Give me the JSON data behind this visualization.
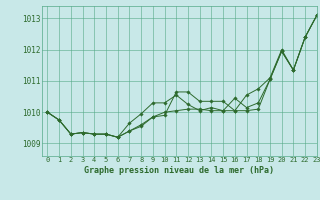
{
  "title": "Graphe pression niveau de la mer (hPa)",
  "bg_color": "#c8e8e8",
  "grid_color": "#55aa88",
  "line_color": "#2d6a2d",
  "xlim": [
    -0.5,
    23
  ],
  "ylim": [
    1008.6,
    1013.4
  ],
  "yticks": [
    1009,
    1010,
    1011,
    1012,
    1013
  ],
  "xticks": [
    0,
    1,
    2,
    3,
    4,
    5,
    6,
    7,
    8,
    9,
    10,
    11,
    12,
    13,
    14,
    15,
    16,
    17,
    18,
    19,
    20,
    21,
    22,
    23
  ],
  "line1": [
    1010.0,
    1009.75,
    1009.3,
    1009.35,
    1009.3,
    1009.3,
    1009.2,
    1009.4,
    1009.55,
    1009.85,
    1009.9,
    1010.65,
    1010.65,
    1010.35,
    1010.35,
    1010.35,
    1010.05,
    1010.55,
    1010.75,
    1011.1,
    1012.0,
    1011.35,
    1012.4,
    1013.1
  ],
  "line2": [
    1010.0,
    1009.75,
    1009.3,
    1009.35,
    1009.3,
    1009.3,
    1009.2,
    1009.65,
    1009.95,
    1010.3,
    1010.3,
    1010.55,
    1010.25,
    1010.05,
    1010.15,
    1010.05,
    1010.45,
    1010.15,
    1010.3,
    1011.05,
    1011.95,
    1011.35,
    1012.4,
    1013.1
  ],
  "line3": [
    1010.0,
    1009.75,
    1009.3,
    1009.35,
    1009.3,
    1009.3,
    1009.2,
    1009.4,
    1009.6,
    1009.85,
    1010.0,
    1010.05,
    1010.1,
    1010.1,
    1010.05,
    1010.05,
    1010.05,
    1010.05,
    1010.1,
    1011.05,
    1011.95,
    1011.35,
    1012.4,
    1013.1
  ]
}
